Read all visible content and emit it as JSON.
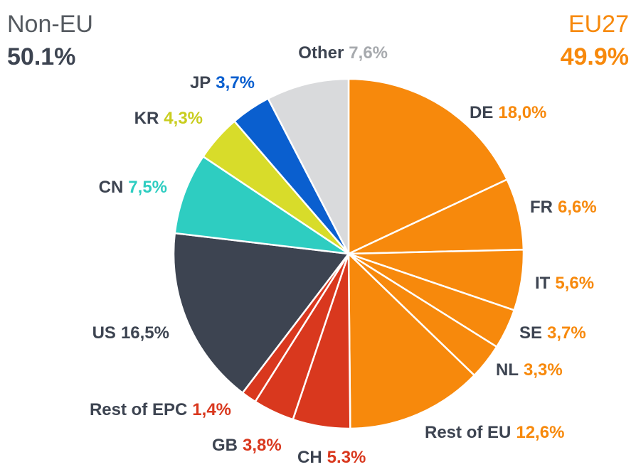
{
  "chart_data": {
    "type": "pie",
    "groups": [
      {
        "name": "Non-EU",
        "label": "50.1%",
        "color": "#3d4451"
      },
      {
        "name": "EU27",
        "label": "49.9%",
        "color": "#f7890c"
      }
    ],
    "categories": [
      "DE",
      "FR",
      "IT",
      "SE",
      "NL",
      "Rest of EU",
      "CH",
      "GB",
      "Rest of EPC",
      "US",
      "CN",
      "KR",
      "JP",
      "Other"
    ],
    "values": [
      18.0,
      6.6,
      5.6,
      3.7,
      3.3,
      12.6,
      5.3,
      3.8,
      1.4,
      16.5,
      7.5,
      4.3,
      3.7,
      7.6
    ],
    "value_labels": [
      "18,0%",
      "6,6%",
      "5,6%",
      "3,7%",
      "3,3%",
      "12,6%",
      "5.3%",
      "3,8%",
      "1,4%",
      "16,5%",
      "7,5%",
      "4,3%",
      "3,7%",
      "7,6%"
    ],
    "colors": [
      "#f7890c",
      "#f7890c",
      "#f7890c",
      "#f7890c",
      "#f7890c",
      "#f7890c",
      "#d9381e",
      "#d9381e",
      "#d9381e",
      "#3d4451",
      "#2ecdc1",
      "#d8dc2a",
      "#0a5fcf",
      "#d9dadc"
    ],
    "label_colors": [
      "#f7890c",
      "#f7890c",
      "#f7890c",
      "#f7890c",
      "#f7890c",
      "#f7890c",
      "#d9381e",
      "#d9381e",
      "#d9381e",
      "#3d4451",
      "#2ecdc1",
      "#c9cd1e",
      "#0a5fcf",
      "#a7aaae"
    ]
  }
}
